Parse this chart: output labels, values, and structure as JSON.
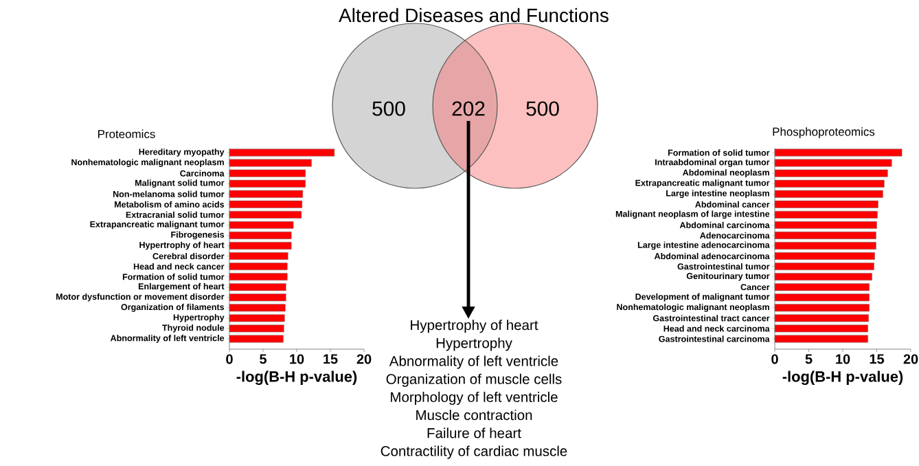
{
  "chart_data": [
    {
      "type": "other",
      "title": "Altered Diseases and Functions",
      "values": [
        500,
        202,
        500
      ],
      "data_labels": true,
      "colors": [
        "#d4d4d4",
        "#e6a6a7",
        "#fcc0c0"
      ],
      "annotations": [
        "Hypertrophy of heart",
        "Hypertrophy",
        "Abnormality of left ventricle",
        "Organization of muscle cells",
        "Morphology of left ventricle",
        "Muscle contraction",
        "Failure of heart",
        "Contractility of cardiac muscle"
      ]
    },
    {
      "type": "bar",
      "orientation": "horizontal",
      "title": "Proteomics",
      "xlabel": "-log(B-H p-value)",
      "color": "#ff0000",
      "xlim": [
        0,
        20
      ],
      "xticks": [
        0,
        5,
        10,
        15,
        20
      ],
      "categories": [
        "Hereditary myopathy",
        "Nonhematologic malignant neoplasm",
        "Carcinoma",
        "Malignant solid tumor",
        "Non-melanoma solid tumor",
        "Metabolism of amino acids",
        "Extracranial solid tumor",
        "Extrapancreatic malignant tumor",
        "Fibrogenesis",
        "Hypertrophy of heart",
        "Cerebral disorder",
        "Head and neck cancer",
        "Formation of solid tumor",
        "Enlargement of heart",
        "Motor dysfunction or movement disorder",
        "Organization of filaments",
        "Hypertrophy",
        "Thyroid nodule",
        "Abnormality of left ventricle"
      ],
      "values": [
        15.6,
        12.2,
        11.3,
        11.3,
        10.9,
        10.8,
        10.7,
        9.5,
        9.2,
        9.2,
        8.7,
        8.6,
        8.6,
        8.4,
        8.4,
        8.3,
        8.2,
        8.1,
        8.0
      ]
    },
    {
      "type": "bar",
      "orientation": "horizontal",
      "title": "Phosphoproteomics",
      "xlabel": "-log(B-H p-value)",
      "color": "#ff0000",
      "xlim": [
        0,
        20
      ],
      "xticks": [
        0,
        5,
        10,
        15,
        20
      ],
      "categories": [
        "Formation of solid tumor",
        "Intraabdominal organ tumor",
        "Abdominal neoplasm",
        "Extrapancreatic malignant tumor",
        "Large intestine neoplasm",
        "Abdominal cancer",
        "Malignant neoplasm of large intestine",
        "Abdominal carcinoma",
        "Adenocarcinoma",
        "Large intestine adenocarcinoma",
        "Abdominal adenocarcinoma",
        "Gastrointestinal tumor",
        "Genitourinary tumor",
        "Cancer",
        "Development of malignant tumor",
        "Nonhematologic malignant neoplasm",
        "Gastrointestinal tract cancer",
        "Head and neck carcinoma",
        "Gastrointestinal carcinoma"
      ],
      "values": [
        18.7,
        17.2,
        16.6,
        16.1,
        15.9,
        15.2,
        15.1,
        15.0,
        14.9,
        14.9,
        14.7,
        14.6,
        14.3,
        13.9,
        13.9,
        13.9,
        13.8,
        13.7,
        13.7
      ]
    }
  ]
}
